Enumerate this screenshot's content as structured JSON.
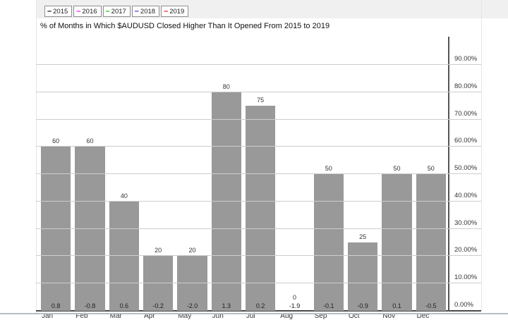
{
  "title": "% of Months in Which $AUDUSD Closed Higher Than It Opened From 2015 to 2019",
  "legend": {
    "dash_glyph": "–",
    "items": [
      {
        "label": "2015",
        "color": "#000000"
      },
      {
        "label": "2016",
        "color": "#ff00ff"
      },
      {
        "label": "2017",
        "color": "#00cc00"
      },
      {
        "label": "2018",
        "color": "#2b2bd4"
      },
      {
        "label": "2019",
        "color": "#ff0000"
      }
    ]
  },
  "chart_data": {
    "type": "bar",
    "title": "% of Months in Which $AUDUSD Closed Higher Than It Opened From 2015 to 2019",
    "categories": [
      "Jan",
      "Feb",
      "Mar",
      "Apr",
      "May",
      "Jun",
      "Jul",
      "Aug",
      "Sep",
      "Oct",
      "Nov",
      "Dec"
    ],
    "series": [
      {
        "name": "% of months closed higher",
        "values": [
          60,
          60,
          40,
          20,
          20,
          80,
          75,
          0,
          50,
          25,
          50,
          50
        ],
        "labels": [
          "60",
          "60",
          "40",
          "20",
          "20",
          "80",
          "75",
          "0",
          "50",
          "25",
          "50",
          "50"
        ]
      },
      {
        "name": "average monthly change",
        "values": [
          0.8,
          -0.8,
          0.6,
          -0.2,
          -2.0,
          1.3,
          0.2,
          -1.9,
          -0.1,
          -0.9,
          0.1,
          -0.5
        ],
        "labels": [
          "0.8",
          "-0.8",
          "0.6",
          "-0.2",
          "-2.0",
          "1.3",
          "0.2",
          "-1.9",
          "-0.1",
          "-0.9",
          "0.1",
          "-0.5"
        ]
      }
    ],
    "bar_color": "#999999",
    "ylim": [
      0,
      100
    ],
    "y_axis_side": "right",
    "y_tick_step": 10,
    "y_tick_labels": [
      "0.00%",
      "10.00%",
      "20.00%",
      "30.00%",
      "40.00%",
      "50.00%",
      "60.00%",
      "70.00%",
      "80.00%",
      "90.00%"
    ],
    "grid": true,
    "legend_position": "top-left",
    "legend_entries": [
      "2015",
      "2016",
      "2017",
      "2018",
      "2019"
    ]
  }
}
